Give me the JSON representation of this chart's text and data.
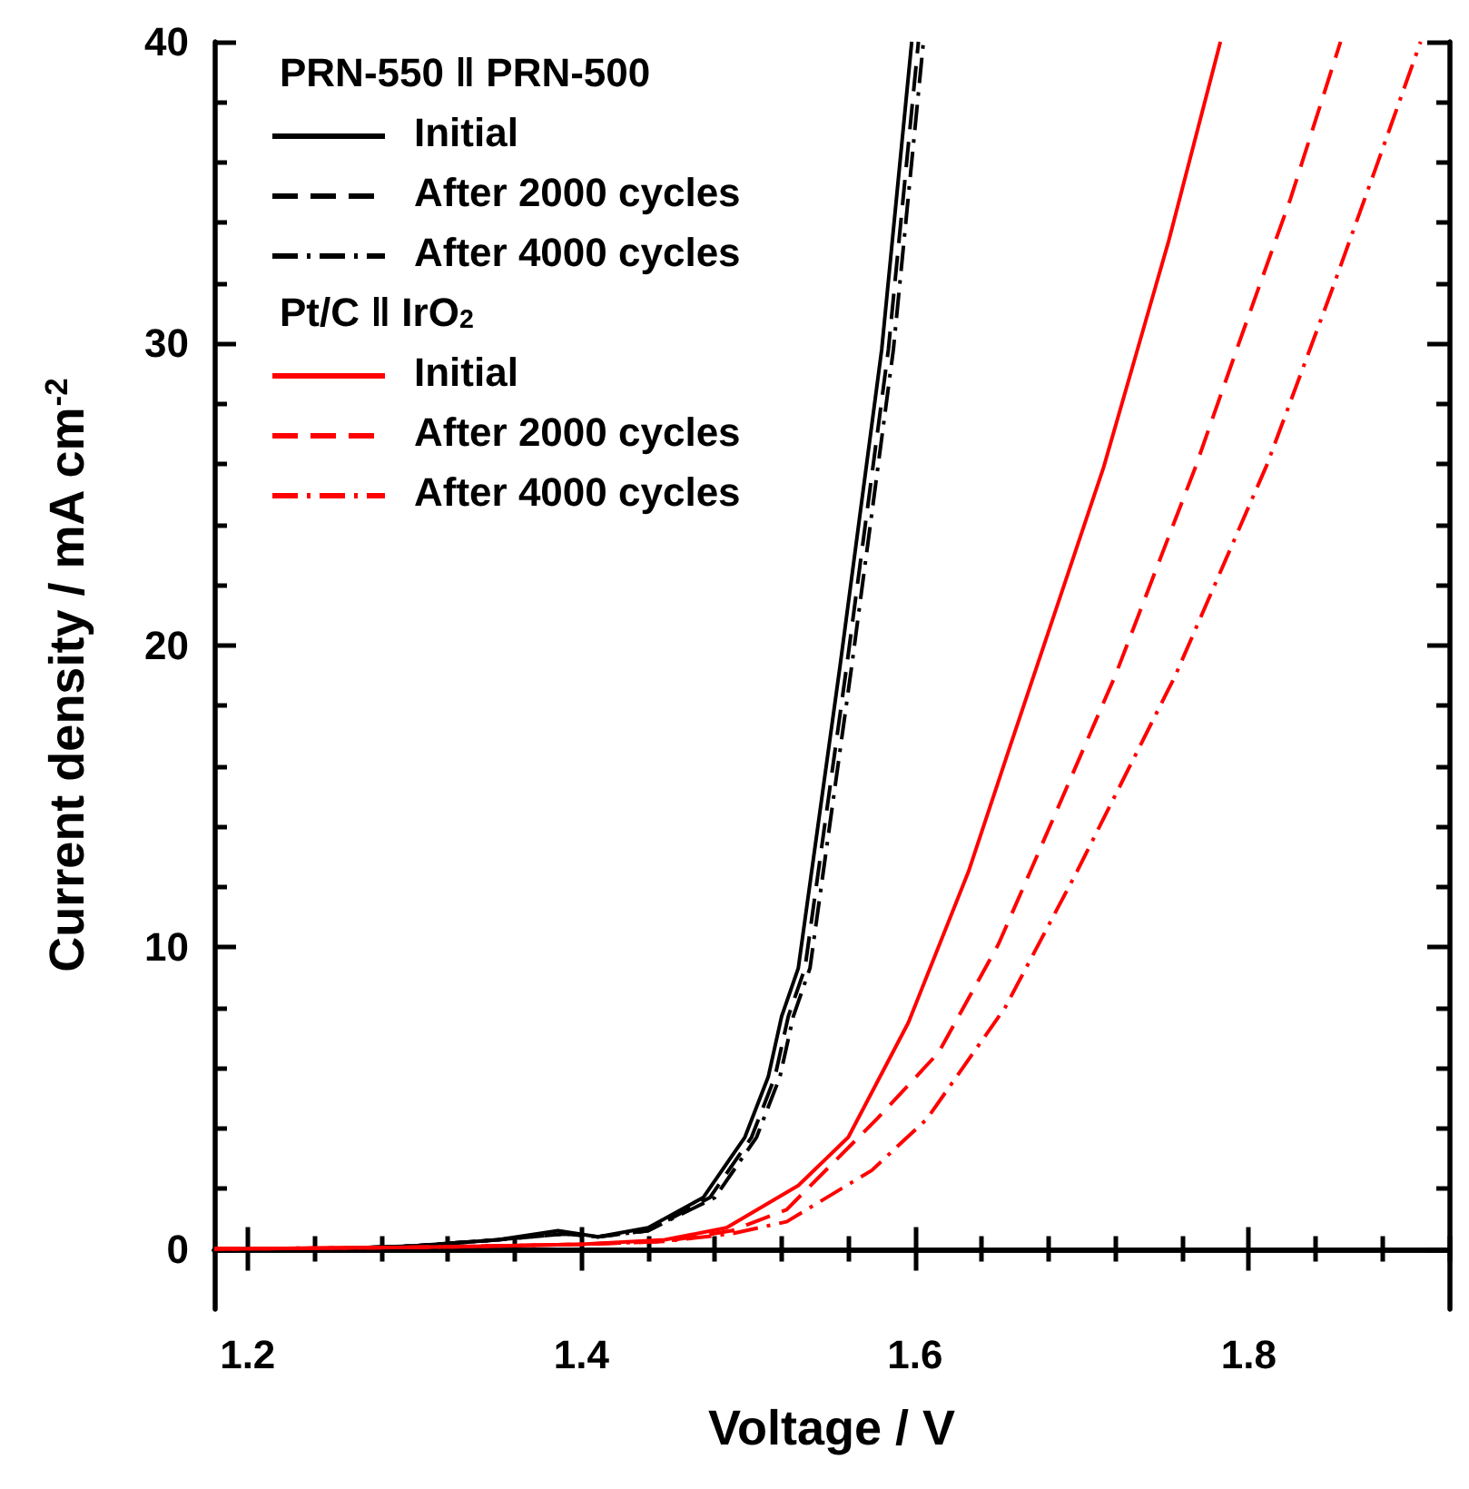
{
  "chart_data": {
    "type": "line",
    "xlabel": "Voltage / V",
    "ylabel": "Current density / mA cm$^{-2}$",
    "xlim": [
      1.18,
      1.92
    ],
    "ylim": [
      -2,
      40
    ],
    "xticks": [
      1.2,
      {
        "value": 1.24,
        "label": null
      },
      {
        "value": 1.28,
        "label": null
      },
      {
        "value": 1.32,
        "label": null
      },
      {
        "value": 1.36,
        "label": null
      },
      1.4,
      {
        "value": 1.44,
        "label": null
      },
      {
        "value": 1.48,
        "label": null
      },
      {
        "value": 1.52,
        "label": null
      },
      {
        "value": 1.56,
        "label": null
      },
      1.6,
      {
        "value": 1.64,
        "label": null
      },
      {
        "value": 1.68,
        "label": null
      },
      {
        "value": 1.72,
        "label": null
      },
      {
        "value": 1.76,
        "label": null
      },
      1.8,
      {
        "value": 1.84,
        "label": null
      },
      {
        "value": 1.88,
        "label": null
      },
      {
        "value": 1.92,
        "label": null
      }
    ],
    "yticks": [
      0,
      {
        "value": 2,
        "label": null
      },
      {
        "value": 4,
        "label": null
      },
      {
        "value": 6,
        "label": null
      },
      {
        "value": 8,
        "label": null
      },
      10,
      {
        "value": 12,
        "label": null
      },
      {
        "value": 14,
        "label": null
      },
      {
        "value": 16,
        "label": null
      },
      {
        "value": 18,
        "label": null
      },
      20,
      {
        "value": 22,
        "label": null
      },
      {
        "value": 24,
        "label": null
      },
      {
        "value": 26,
        "label": null
      },
      {
        "value": 28,
        "label": null
      },
      30,
      {
        "value": 32,
        "label": null
      },
      {
        "value": 34,
        "label": null
      },
      {
        "value": 36,
        "label": null
      },
      {
        "value": 38,
        "label": null
      },
      40
    ],
    "grid": false,
    "legend": "top left",
    "marker": "none",
    "annotations": [
      "PRN-550 ‖ PRN-500",
      "Pt/C ‖ IrO$_{2}$"
    ],
    "series": [
      {
        "name": "Initial",
        "color": "#000000",
        "line_style": "solid",
        "x": [
          1.18,
          1.25,
          1.3,
          1.35,
          1.386,
          1.41,
          1.44,
          1.473,
          1.498,
          1.512,
          1.52,
          1.53,
          1.555,
          1.58,
          1.598
        ],
        "values": [
          0,
          0,
          0.1,
          0.3,
          0.6,
          0.4,
          0.7,
          1.7,
          3.7,
          5.7,
          7.7,
          9.3,
          19.3,
          29.8,
          40
        ]
      },
      {
        "name": "After 2000 cycles",
        "color": "#000000",
        "line_style": "dashed",
        "x": [
          1.18,
          1.25,
          1.3,
          1.35,
          1.39,
          1.41,
          1.44,
          1.477,
          1.502,
          1.516,
          1.524,
          1.534,
          1.559,
          1.584,
          1.602
        ],
        "values": [
          0,
          0,
          0.1,
          0.3,
          0.5,
          0.4,
          0.6,
          1.7,
          3.7,
          5.7,
          7.7,
          9.3,
          19.3,
          29.8,
          40
        ]
      },
      {
        "name": "After 4000 cycles",
        "color": "#000000",
        "line_style": "dashed-dotted",
        "x": [
          1.18,
          1.25,
          1.3,
          1.35,
          1.39,
          1.41,
          1.44,
          1.48,
          1.505,
          1.519,
          1.527,
          1.537,
          1.562,
          1.587,
          1.605
        ],
        "values": [
          0,
          0,
          0.1,
          0.3,
          0.5,
          0.4,
          0.6,
          1.7,
          3.7,
          5.7,
          7.7,
          9.3,
          19.3,
          29.8,
          40
        ]
      },
      {
        "name": "Initial",
        "color": "#ff0000",
        "line_style": "solid",
        "x": [
          1.18,
          1.3,
          1.4,
          1.45,
          1.487,
          1.53,
          1.56,
          1.596,
          1.632,
          1.656,
          1.713,
          1.752,
          1.783
        ],
        "values": [
          0,
          0.05,
          0.15,
          0.3,
          0.7,
          2.1,
          3.7,
          7.5,
          12.5,
          16.5,
          25.9,
          33.4,
          40
        ]
      },
      {
        "name": "After 2000 cycles",
        "color": "#ff0000",
        "line_style": "dashed",
        "x": [
          1.18,
          1.3,
          1.4,
          1.45,
          1.49,
          1.523,
          1.577,
          1.614,
          1.65,
          1.669,
          1.72,
          1.768,
          1.794,
          1.825,
          1.855
        ],
        "values": [
          0,
          0.05,
          0.15,
          0.25,
          0.6,
          1.3,
          4.3,
          6.5,
          10.1,
          12.5,
          19,
          25.9,
          30,
          34.8,
          40
        ]
      },
      {
        "name": "After 4000 cycles",
        "color": "#ff0000",
        "line_style": "dashed-dotted",
        "x": [
          1.18,
          1.3,
          1.4,
          1.45,
          1.49,
          1.523,
          1.574,
          1.607,
          1.654,
          1.697,
          1.756,
          1.811,
          1.85,
          1.876,
          1.903
        ],
        "values": [
          0,
          0.05,
          0.15,
          0.25,
          0.5,
          0.9,
          2.6,
          4.3,
          8,
          12.5,
          19,
          26,
          31.8,
          35.8,
          40
        ]
      }
    ]
  }
}
